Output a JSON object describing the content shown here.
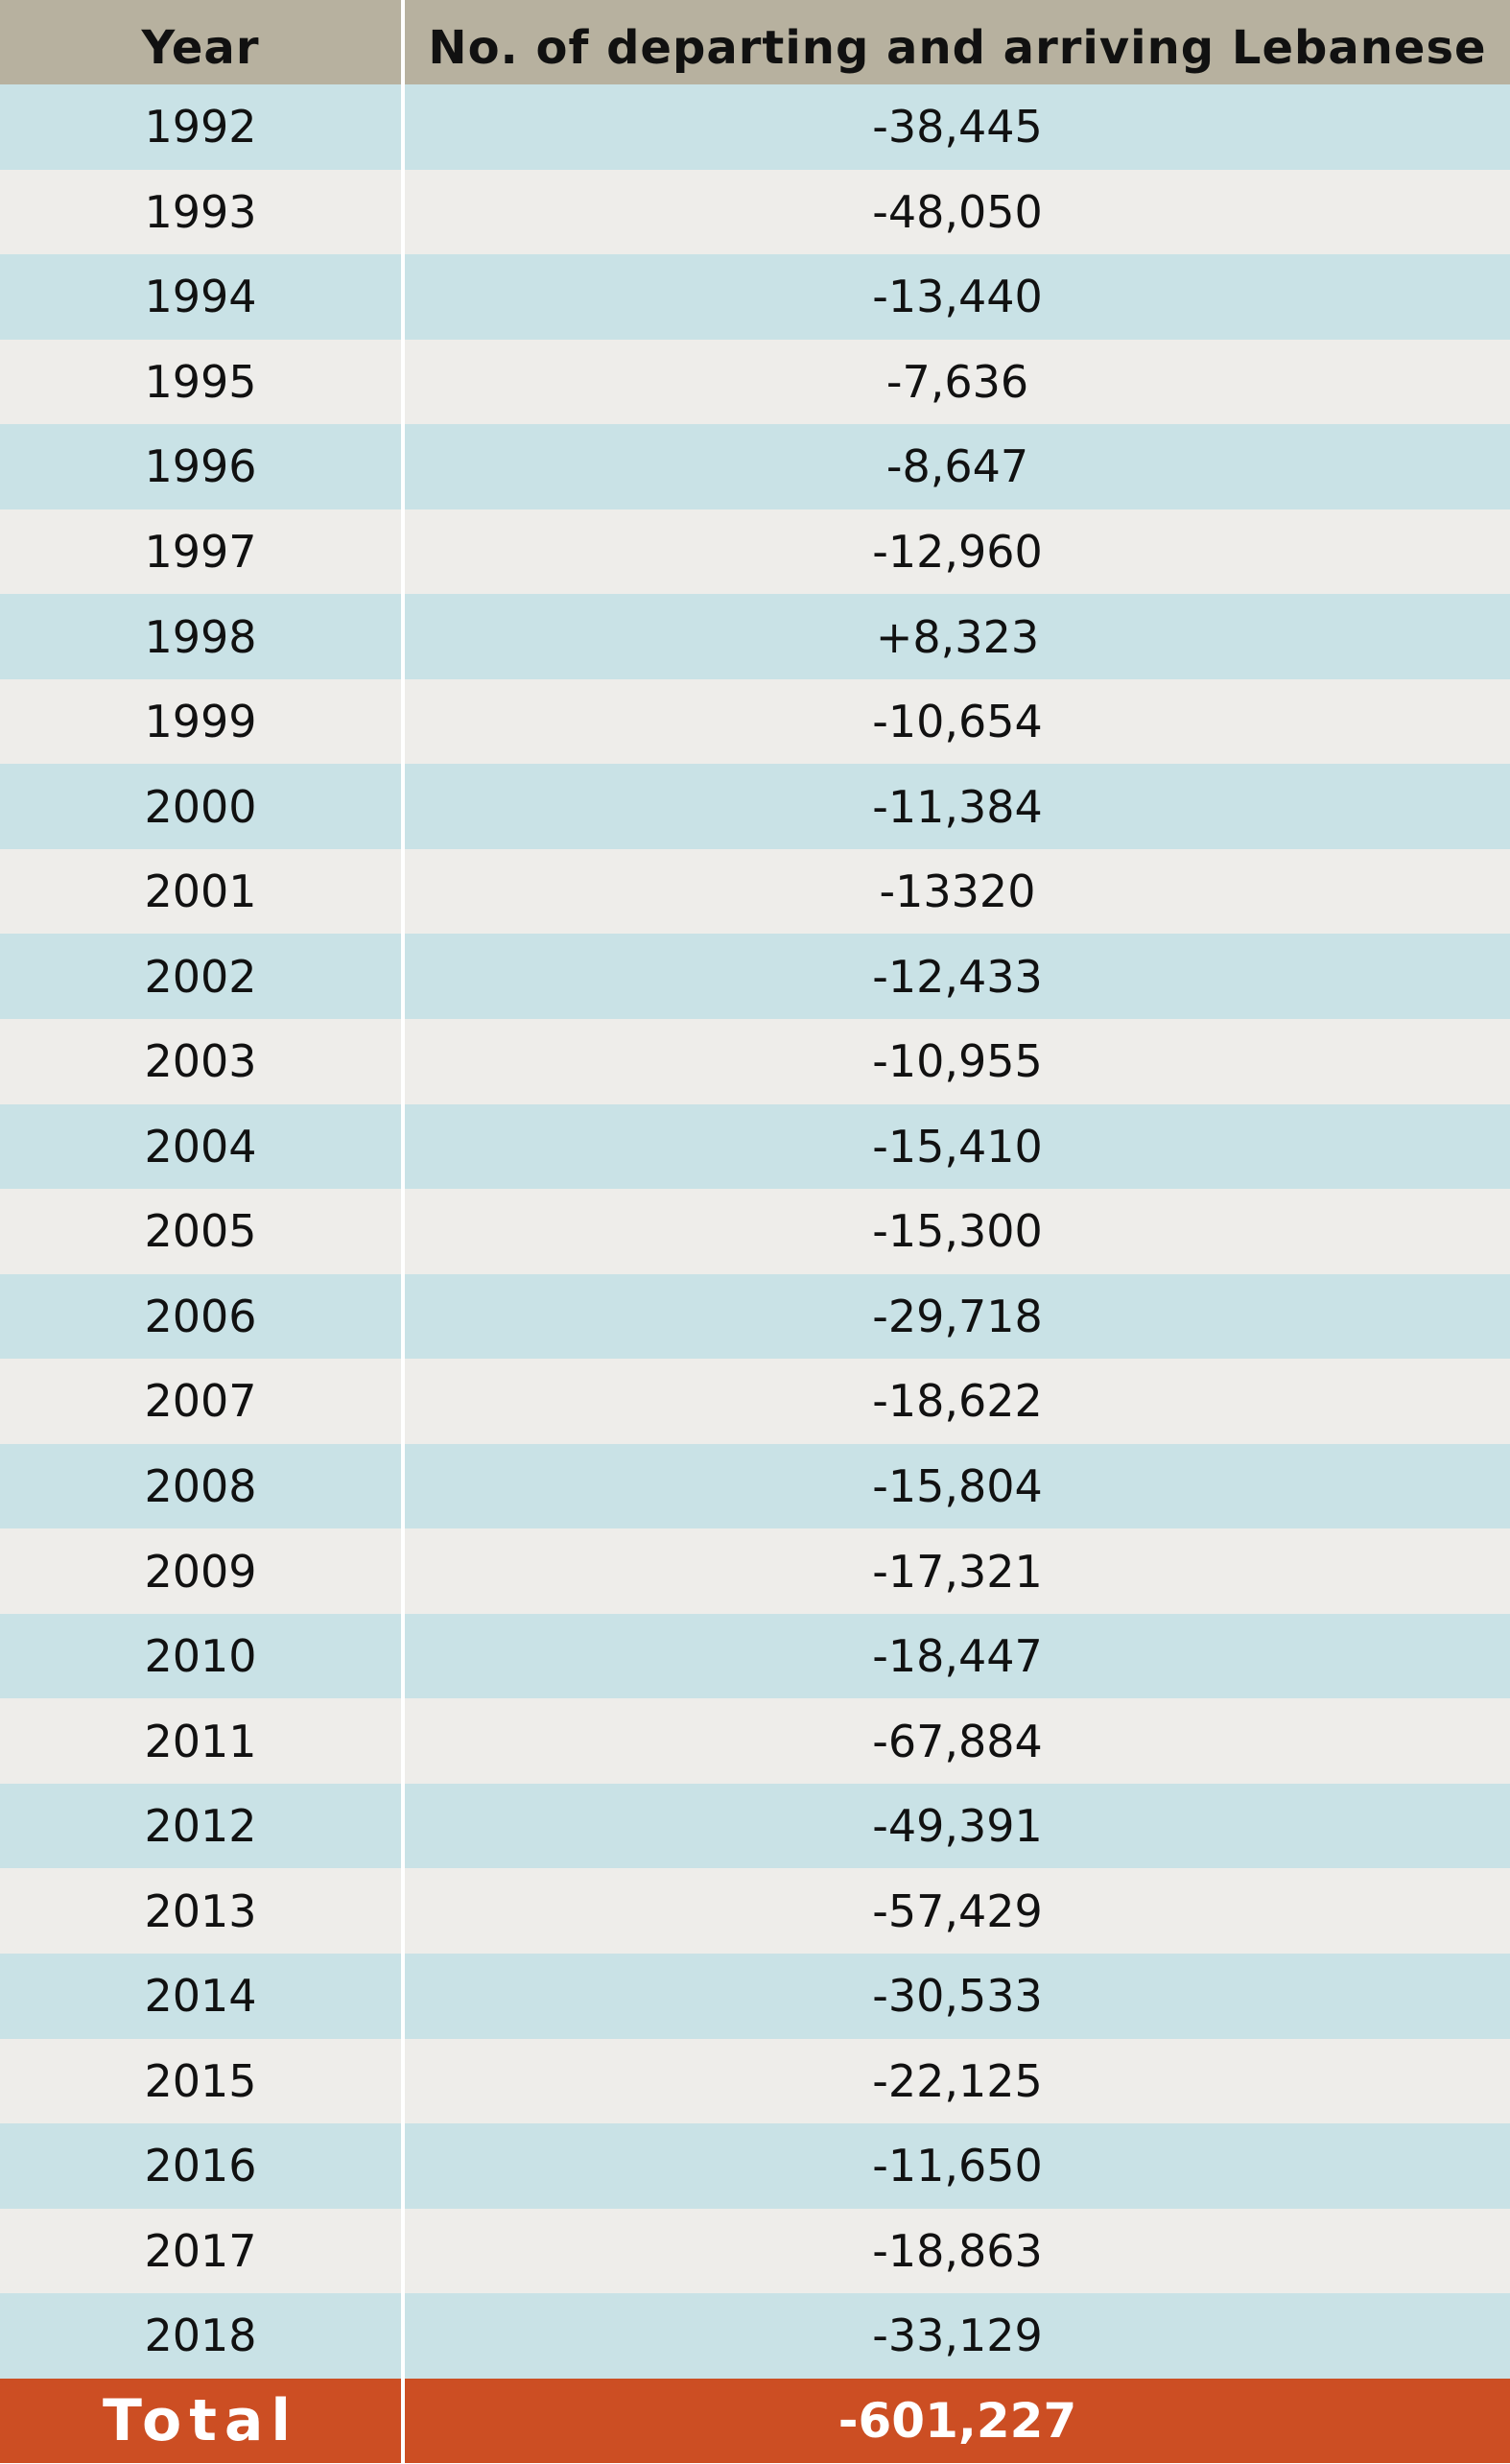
{
  "colors": {
    "header_bg": "#b7b19f",
    "row_blue": "#c9e2e6",
    "row_gray": "#eeedea",
    "total_bg": "#cc4e23",
    "text": "#111111",
    "total_text": "#ffffff"
  },
  "chart_data": {
    "type": "table",
    "columns": [
      "Year",
      "No. of departing and arriving Lebanese"
    ],
    "rows": [
      [
        "1992",
        "-38,445"
      ],
      [
        "1993",
        "-48,050"
      ],
      [
        "1994",
        "-13,440"
      ],
      [
        "1995",
        "-7,636"
      ],
      [
        "1996",
        "-8,647"
      ],
      [
        "1997",
        "-12,960"
      ],
      [
        "1998",
        "+8,323"
      ],
      [
        "1999",
        "-10,654"
      ],
      [
        "2000",
        "-11,384"
      ],
      [
        "2001",
        "-13320"
      ],
      [
        "2002",
        "-12,433"
      ],
      [
        "2003",
        "-10,955"
      ],
      [
        "2004",
        "-15,410"
      ],
      [
        "2005",
        "-15,300"
      ],
      [
        "2006",
        "-29,718"
      ],
      [
        "2007",
        "-18,622"
      ],
      [
        "2008",
        "-15,804"
      ],
      [
        "2009",
        "-17,321"
      ],
      [
        "2010",
        "-18,447"
      ],
      [
        "2011",
        "-67,884"
      ],
      [
        "2012",
        "-49,391"
      ],
      [
        "2013",
        "-57,429"
      ],
      [
        "2014",
        "-30,533"
      ],
      [
        "2015",
        "-22,125"
      ],
      [
        "2016",
        "-11,650"
      ],
      [
        "2017",
        "-18,863"
      ],
      [
        "2018",
        "-33,129"
      ]
    ],
    "total": [
      "Total",
      "-601,227"
    ]
  }
}
